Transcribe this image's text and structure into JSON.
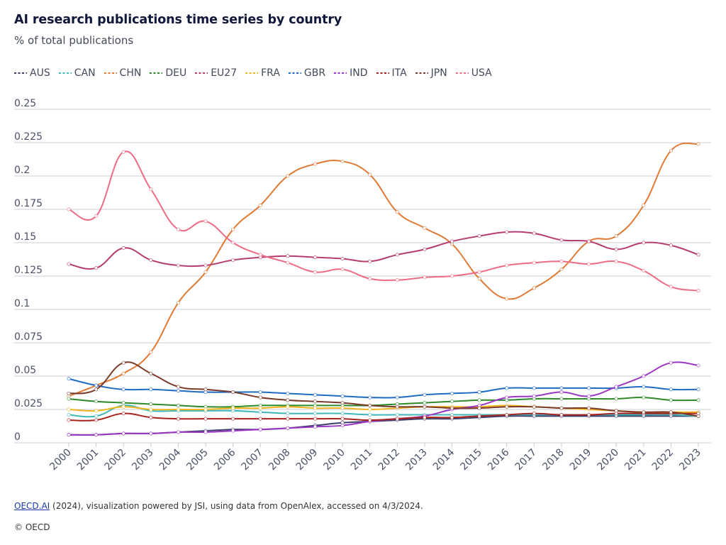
{
  "header": {
    "title": "AI research publications time series by country",
    "subtitle": "% of total publications"
  },
  "footer": {
    "source_link": "OECD.AI",
    "source_text": " (2024), visualization powered by JSI, using data from OpenAlex, accessed on 4/3/2024.",
    "copyright": "© OECD"
  },
  "chart_data": {
    "type": "line",
    "title": "AI research publications time series by country",
    "subtitle": "% of total publications",
    "xlabel": "",
    "ylabel": "",
    "ylim": [
      0,
      0.25
    ],
    "grid": true,
    "legend_position": "top",
    "y_ticks": [
      "0",
      "0.025",
      "0.05",
      "0.075",
      "0.1",
      "0.125",
      "0.15",
      "0.175",
      "0.2",
      "0.225",
      "0.25"
    ],
    "x": [
      "2000",
      "2001",
      "2002",
      "2003",
      "2004",
      "2005",
      "2006",
      "2007",
      "2008",
      "2009",
      "2010",
      "2011",
      "2012",
      "2013",
      "2014",
      "2015",
      "2016",
      "2017",
      "2018",
      "2019",
      "2020",
      "2021",
      "2022",
      "2023"
    ],
    "series": [
      {
        "name": "AUS",
        "color": "#3b3f6b",
        "values": [
          0.006,
          0.006,
          0.007,
          0.007,
          0.008,
          0.009,
          0.01,
          0.01,
          0.011,
          0.013,
          0.015,
          0.016,
          0.017,
          0.018,
          0.018,
          0.019,
          0.02,
          0.02,
          0.02,
          0.02,
          0.02,
          0.02,
          0.02,
          0.02
        ]
      },
      {
        "name": "CAN",
        "color": "#3fb6b8",
        "values": [
          0.021,
          0.02,
          0.028,
          0.024,
          0.024,
          0.024,
          0.024,
          0.023,
          0.022,
          0.022,
          0.022,
          0.021,
          0.021,
          0.021,
          0.021,
          0.021,
          0.021,
          0.021,
          0.021,
          0.021,
          0.021,
          0.021,
          0.021,
          0.02
        ]
      },
      {
        "name": "CHN",
        "color": "#e07a35",
        "values": [
          0.035,
          0.043,
          0.052,
          0.068,
          0.105,
          0.128,
          0.16,
          0.178,
          0.2,
          0.209,
          0.211,
          0.201,
          0.173,
          0.161,
          0.149,
          0.123,
          0.108,
          0.116,
          0.13,
          0.151,
          0.155,
          0.178,
          0.219,
          0.224
        ]
      },
      {
        "name": "DEU",
        "color": "#2e8a2a",
        "values": [
          0.033,
          0.031,
          0.03,
          0.029,
          0.028,
          0.027,
          0.027,
          0.028,
          0.028,
          0.028,
          0.028,
          0.028,
          0.029,
          0.03,
          0.031,
          0.032,
          0.032,
          0.033,
          0.033,
          0.033,
          0.033,
          0.034,
          0.032,
          0.032
        ]
      },
      {
        "name": "EU27",
        "color": "#b53c6e",
        "values": [
          0.134,
          0.131,
          0.146,
          0.137,
          0.133,
          0.133,
          0.137,
          0.139,
          0.14,
          0.139,
          0.138,
          0.136,
          0.141,
          0.145,
          0.151,
          0.155,
          0.158,
          0.157,
          0.152,
          0.151,
          0.145,
          0.15,
          0.148,
          0.141
        ]
      },
      {
        "name": "FRA",
        "color": "#f0b51c",
        "values": [
          0.025,
          0.024,
          0.027,
          0.025,
          0.025,
          0.025,
          0.026,
          0.026,
          0.027,
          0.026,
          0.026,
          0.025,
          0.026,
          0.027,
          0.027,
          0.027,
          0.028,
          0.027,
          0.026,
          0.025,
          0.024,
          0.023,
          0.023,
          0.023
        ]
      },
      {
        "name": "GBR",
        "color": "#1f6ac2",
        "values": [
          0.048,
          0.043,
          0.04,
          0.04,
          0.039,
          0.038,
          0.038,
          0.038,
          0.037,
          0.036,
          0.035,
          0.034,
          0.034,
          0.036,
          0.037,
          0.038,
          0.041,
          0.041,
          0.041,
          0.041,
          0.041,
          0.042,
          0.04,
          0.04
        ]
      },
      {
        "name": "IND",
        "color": "#9b35c4",
        "values": [
          0.006,
          0.006,
          0.007,
          0.007,
          0.008,
          0.008,
          0.009,
          0.01,
          0.011,
          0.012,
          0.013,
          0.016,
          0.018,
          0.02,
          0.025,
          0.028,
          0.034,
          0.035,
          0.038,
          0.035,
          0.042,
          0.05,
          0.06,
          0.058
        ]
      },
      {
        "name": "ITA",
        "color": "#a8221e",
        "values": [
          0.017,
          0.017,
          0.022,
          0.019,
          0.018,
          0.018,
          0.018,
          0.018,
          0.018,
          0.018,
          0.018,
          0.017,
          0.018,
          0.019,
          0.019,
          0.02,
          0.021,
          0.022,
          0.021,
          0.021,
          0.022,
          0.022,
          0.022,
          0.022
        ]
      },
      {
        "name": "JPN",
        "color": "#7a3a2a",
        "values": [
          0.037,
          0.04,
          0.06,
          0.052,
          0.042,
          0.04,
          0.038,
          0.034,
          0.032,
          0.031,
          0.03,
          0.028,
          0.027,
          0.027,
          0.026,
          0.026,
          0.027,
          0.027,
          0.026,
          0.026,
          0.024,
          0.023,
          0.023,
          0.02
        ]
      },
      {
        "name": "USA",
        "color": "#ee6b84",
        "values": [
          0.175,
          0.17,
          0.218,
          0.19,
          0.16,
          0.166,
          0.15,
          0.141,
          0.135,
          0.128,
          0.13,
          0.123,
          0.122,
          0.124,
          0.125,
          0.128,
          0.133,
          0.135,
          0.136,
          0.134,
          0.136,
          0.129,
          0.117,
          0.114
        ]
      }
    ]
  }
}
